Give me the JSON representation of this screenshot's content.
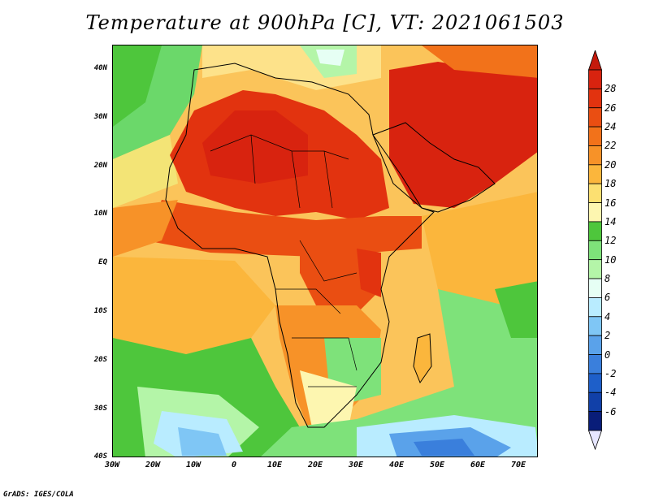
{
  "title": "Temperature at 900hPa [C], VT: 2021061503",
  "credit": "GrADS: IGES/COLA",
  "x_ticks": [
    "30W",
    "20W",
    "10W",
    "0",
    "10E",
    "20E",
    "30E",
    "40E",
    "50E",
    "60E",
    "70E"
  ],
  "y_ticks": [
    "40N",
    "30N",
    "20N",
    "10N",
    "EQ",
    "10S",
    "20S",
    "30S",
    "40S"
  ],
  "colorbar": {
    "labels": [
      "28",
      "26",
      "24",
      "22",
      "20",
      "18",
      "16",
      "14",
      "12",
      "10",
      "8",
      "6",
      "4",
      "2",
      "0",
      "-2",
      "-4",
      "-6"
    ],
    "colors": [
      "#d8230f",
      "#e2330f",
      "#ea4e12",
      "#f2721a",
      "#f79228",
      "#fbb63c",
      "#fce071",
      "#fdf6b0",
      "#4ec63c",
      "#7ee27a",
      "#b4f5a8",
      "#e6fff4",
      "#b9ecff",
      "#7fc6f5",
      "#5aa2ea",
      "#3a7fdc",
      "#1e5fc9",
      "#1140a8",
      "#091d79"
    ],
    "top_arrow_color": "#c41a0c",
    "bottom_arrow_color": "#e6e6ff"
  },
  "map": {
    "ocean_base": "#fbc860",
    "lon_range": [
      -30,
      75
    ],
    "lat_range": [
      -40,
      45
    ]
  }
}
